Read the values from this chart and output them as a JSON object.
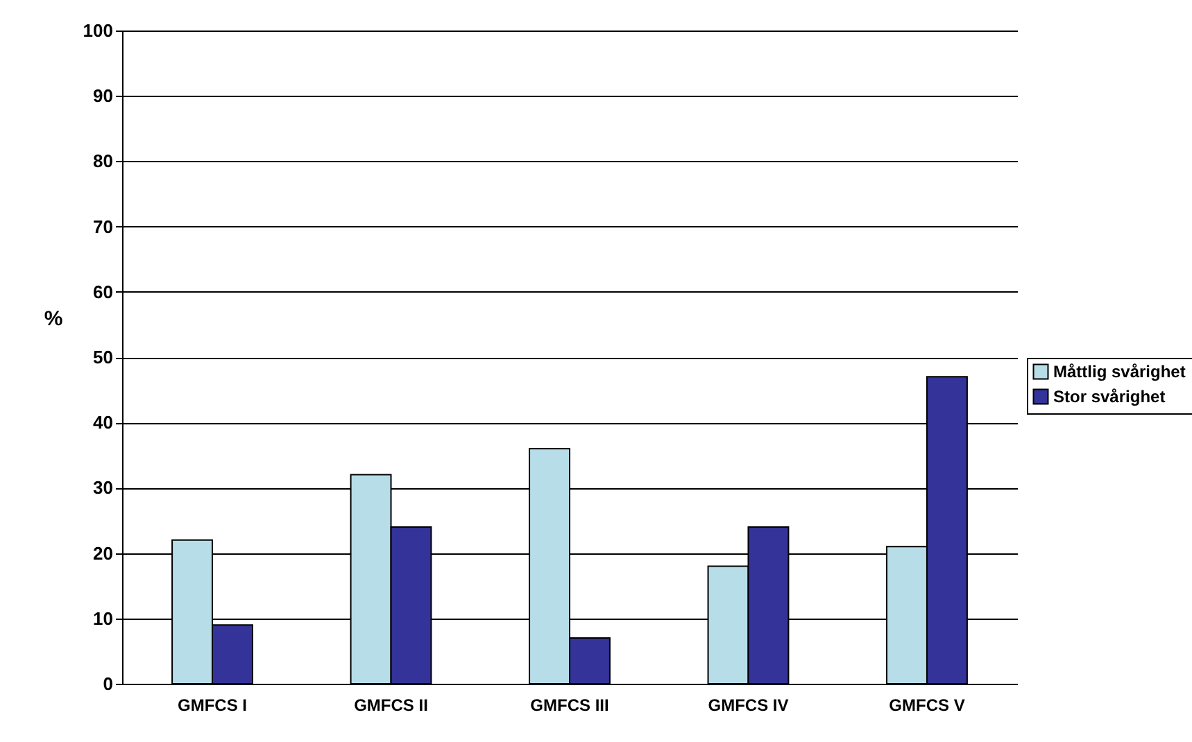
{
  "chart_data": {
    "type": "bar",
    "ylabel": "%",
    "categories": [
      "GMFCS I",
      "GMFCS II",
      "GMFCS III",
      "GMFCS IV",
      "GMFCS V"
    ],
    "series": [
      {
        "name": "Måttlig svårighet",
        "color": "#b7dee8",
        "values": [
          22,
          32,
          36,
          18,
          21
        ]
      },
      {
        "name": "Stor svårighet",
        "color": "#333399",
        "values": [
          9,
          24,
          7,
          24,
          47
        ]
      }
    ],
    "ylim": [
      0,
      100
    ],
    "yticks": [
      0,
      10,
      20,
      30,
      40,
      50,
      60,
      70,
      80,
      90,
      100
    ],
    "grid": "y",
    "legend": "right"
  }
}
